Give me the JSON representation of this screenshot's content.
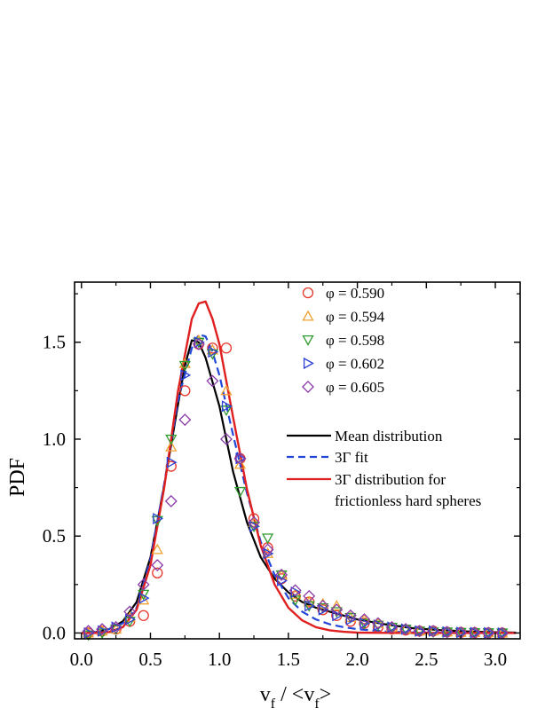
{
  "chart_data": {
    "type": "scatter",
    "xlabel_parts": {
      "v1": "v",
      "sub1": "f",
      "mid": " / <v",
      "sub2": "f",
      "end": ">"
    },
    "ylabel": "PDF",
    "xlim": [
      -0.05,
      3.18
    ],
    "ylim": [
      -0.03,
      1.81
    ],
    "x_ticks": [
      0.0,
      0.5,
      1.0,
      1.5,
      2.0,
      2.5,
      3.0
    ],
    "x_tick_labels": [
      "0.0",
      "0.5",
      "1.0",
      "1.5",
      "2.0",
      "2.5",
      "3.0"
    ],
    "y_ticks": [
      0.0,
      0.5,
      1.0,
      1.5
    ],
    "y_tick_labels": [
      "0.0",
      "0.5",
      "1.0",
      "1.5"
    ],
    "legend_position": "top-right",
    "scatter_series": [
      {
        "name": "φ = 0.590",
        "marker": "circle",
        "color": "#e8352a",
        "x": [
          0.05,
          0.15,
          0.25,
          0.35,
          0.45,
          0.55,
          0.65,
          0.75,
          0.85,
          0.95,
          1.05,
          1.15,
          1.25,
          1.35,
          1.45,
          1.55,
          1.65,
          1.75,
          1.85,
          1.95,
          2.05,
          2.15,
          2.25,
          2.35,
          2.45,
          2.55,
          2.65,
          2.75,
          2.85,
          2.95,
          3.05
        ],
        "y": [
          0.0,
          0.01,
          0.02,
          0.06,
          0.09,
          0.31,
          0.86,
          1.25,
          1.49,
          1.47,
          1.47,
          0.9,
          0.59,
          0.44,
          0.28,
          0.19,
          0.16,
          0.12,
          0.09,
          0.06,
          0.05,
          0.03,
          0.02,
          0.015,
          0.01,
          0.01,
          0.005,
          0.003,
          0.002,
          0.001,
          0.0
        ]
      },
      {
        "name": "φ = 0.594",
        "marker": "triangle-up",
        "color": "#f0a030",
        "x": [
          0.05,
          0.15,
          0.25,
          0.35,
          0.45,
          0.55,
          0.65,
          0.75,
          0.85,
          0.95,
          1.05,
          1.15,
          1.25,
          1.35,
          1.45,
          1.55,
          1.65,
          1.75,
          1.85,
          1.95,
          2.05,
          2.15,
          2.25,
          2.35,
          2.45,
          2.55,
          2.65,
          2.75,
          2.85,
          2.95,
          3.05
        ],
        "y": [
          0.0,
          0.01,
          0.02,
          0.08,
          0.17,
          0.43,
          0.96,
          1.39,
          1.51,
          1.46,
          1.25,
          0.87,
          0.57,
          0.41,
          0.3,
          0.2,
          0.16,
          0.15,
          0.14,
          0.08,
          0.07,
          0.05,
          0.03,
          0.02,
          0.01,
          0.01,
          0.005,
          0.003,
          0.002,
          0.001,
          0.0
        ]
      },
      {
        "name": "φ = 0.598",
        "marker": "triangle-down",
        "color": "#2f9a2f",
        "x": [
          0.05,
          0.15,
          0.25,
          0.35,
          0.45,
          0.55,
          0.65,
          0.75,
          0.85,
          0.95,
          1.05,
          1.15,
          1.25,
          1.35,
          1.45,
          1.55,
          1.65,
          1.75,
          1.85,
          1.95,
          2.05,
          2.15,
          2.25,
          2.35,
          2.45,
          2.55,
          2.65,
          2.75,
          2.85,
          2.95,
          3.05
        ],
        "y": [
          -0.01,
          0.0,
          0.02,
          0.06,
          0.2,
          0.58,
          1.0,
          1.38,
          1.5,
          1.44,
          1.15,
          0.73,
          0.55,
          0.49,
          0.3,
          0.17,
          0.14,
          0.13,
          0.11,
          0.08,
          0.05,
          0.04,
          0.03,
          0.02,
          0.01,
          0.005,
          0.005,
          0.003,
          0.002,
          0.001,
          0.0
        ]
      },
      {
        "name": "φ = 0.602",
        "marker": "triangle-right",
        "color": "#2c3fd6",
        "x": [
          0.05,
          0.15,
          0.25,
          0.35,
          0.45,
          0.55,
          0.65,
          0.75,
          0.85,
          0.95,
          1.05,
          1.15,
          1.25,
          1.35,
          1.45,
          1.55,
          1.65,
          1.75,
          1.85,
          1.95,
          2.05,
          2.15,
          2.25,
          2.35,
          2.45,
          2.55,
          2.65,
          2.75,
          2.85,
          2.95,
          3.05
        ],
        "y": [
          0.0,
          0.01,
          0.03,
          0.07,
          0.18,
          0.59,
          0.88,
          1.33,
          1.5,
          1.45,
          1.17,
          0.9,
          0.55,
          0.41,
          0.27,
          0.21,
          0.14,
          0.12,
          0.09,
          0.07,
          0.05,
          0.04,
          0.03,
          0.02,
          0.01,
          0.01,
          0.005,
          0.003,
          0.002,
          0.001,
          0.0
        ]
      },
      {
        "name": "φ = 0.605",
        "marker": "diamond",
        "color": "#8a3aa8",
        "x": [
          0.05,
          0.15,
          0.25,
          0.35,
          0.45,
          0.55,
          0.65,
          0.75,
          0.85,
          0.95,
          1.05,
          1.15,
          1.25,
          1.35,
          1.45,
          1.55,
          1.65,
          1.75,
          1.85,
          1.95,
          2.05,
          2.15,
          2.25,
          2.35,
          2.45,
          2.55,
          2.65,
          2.75,
          2.85,
          2.95,
          3.05
        ],
        "y": [
          0.01,
          0.02,
          0.03,
          0.11,
          0.25,
          0.35,
          0.68,
          1.1,
          1.49,
          1.3,
          1.0,
          0.9,
          0.57,
          0.43,
          0.3,
          0.22,
          0.19,
          0.14,
          0.12,
          0.09,
          0.07,
          0.05,
          0.03,
          0.02,
          0.01,
          0.01,
          0.005,
          0.003,
          0.002,
          0.001,
          0.0
        ]
      }
    ],
    "line_series": [
      {
        "name": "Mean distribution",
        "style": "solid",
        "color": "#000000",
        "x": [
          0.0,
          0.1,
          0.2,
          0.3,
          0.4,
          0.5,
          0.6,
          0.7,
          0.75,
          0.8,
          0.85,
          0.9,
          1.0,
          1.1,
          1.2,
          1.3,
          1.4,
          1.5,
          1.6,
          1.7,
          1.8,
          1.9,
          2.0,
          2.2,
          2.4,
          2.6,
          2.8,
          3.0,
          3.15
        ],
        "y": [
          0.0,
          0.005,
          0.02,
          0.06,
          0.16,
          0.39,
          0.76,
          1.18,
          1.38,
          1.51,
          1.5,
          1.42,
          1.17,
          0.83,
          0.57,
          0.39,
          0.28,
          0.21,
          0.16,
          0.13,
          0.11,
          0.09,
          0.07,
          0.045,
          0.025,
          0.015,
          0.008,
          0.004,
          0.002
        ]
      },
      {
        "name": "3Γ fit",
        "style": "dashed",
        "color": "#2346d8",
        "x": [
          0.0,
          0.1,
          0.2,
          0.3,
          0.4,
          0.5,
          0.6,
          0.7,
          0.8,
          0.85,
          0.9,
          0.95,
          1.0,
          1.1,
          1.2,
          1.3,
          1.4,
          1.5,
          1.6,
          1.7,
          1.8,
          1.9,
          2.0,
          2.2,
          2.4,
          2.6,
          2.8,
          3.0,
          3.15
        ],
        "y": [
          0.0,
          0.004,
          0.02,
          0.05,
          0.13,
          0.38,
          0.77,
          1.2,
          1.47,
          1.54,
          1.53,
          1.45,
          1.33,
          1.02,
          0.72,
          0.47,
          0.3,
          0.18,
          0.11,
          0.07,
          0.045,
          0.03,
          0.02,
          0.008,
          0.003,
          0.001,
          0.0005,
          0.0002,
          0.0
        ]
      },
      {
        "name": "3Γ distribution for frictionless hard spheres",
        "style": "solid",
        "color": "#e02020",
        "x": [
          0.0,
          0.1,
          0.2,
          0.3,
          0.4,
          0.5,
          0.6,
          0.7,
          0.8,
          0.85,
          0.9,
          0.95,
          1.0,
          1.1,
          1.2,
          1.3,
          1.4,
          1.5,
          1.6,
          1.7,
          1.8,
          1.9,
          2.0,
          2.2,
          2.4,
          2.6,
          2.8,
          3.0,
          3.15
        ],
        "y": [
          0.0,
          0.0,
          0.005,
          0.03,
          0.12,
          0.35,
          0.75,
          1.25,
          1.62,
          1.7,
          1.71,
          1.62,
          1.49,
          1.11,
          0.74,
          0.45,
          0.25,
          0.13,
          0.065,
          0.03,
          0.014,
          0.006,
          0.002,
          0.0005,
          0.0,
          0.0,
          0.0,
          0.0,
          0.0
        ]
      }
    ],
    "legend_line_labels": [
      "Mean distribution",
      "3Γ fit",
      "3Γ distribution for",
      "frictionless hard spheres"
    ]
  }
}
